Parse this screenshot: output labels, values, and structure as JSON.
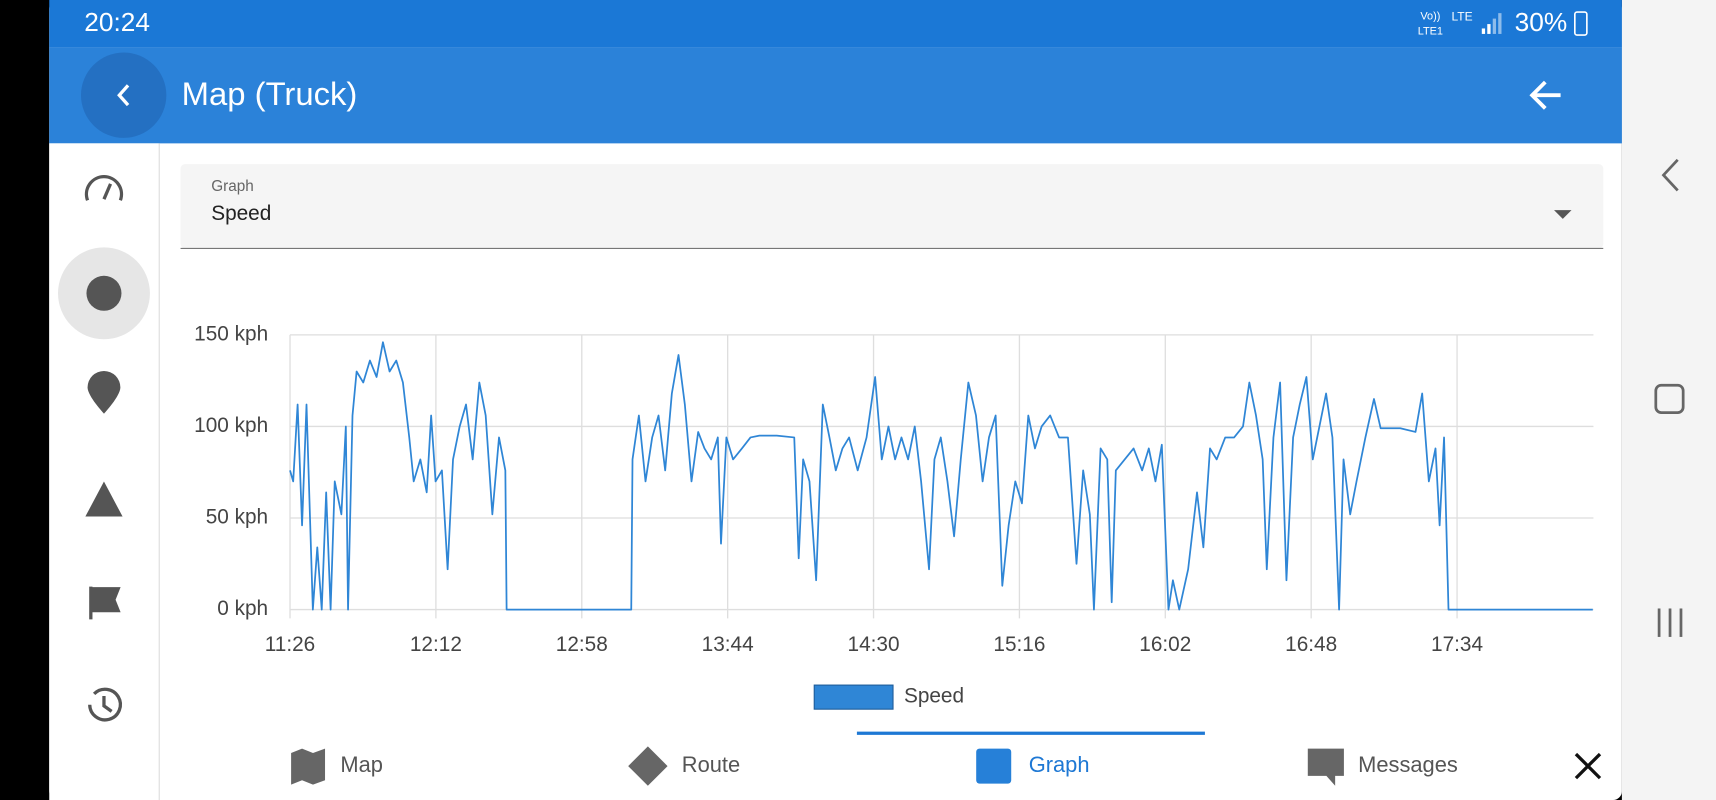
{
  "status_bar": {
    "time": "20:24",
    "net_top": "Vo))",
    "net_bottom": "LTE1",
    "net2": "LTE",
    "battery": "30%"
  },
  "header": {
    "title": "Map (Truck)"
  },
  "dropdown": {
    "label": "Graph",
    "value": "Speed"
  },
  "chart_data": {
    "type": "line",
    "x": [
      686,
      687,
      688.4,
      689.8,
      691.2,
      693.2,
      694.6,
      696,
      697.4,
      698.8,
      700.1,
      702.2,
      703.6,
      704.3,
      705.7,
      707,
      709.1,
      711.2,
      713.3,
      715.3,
      717.4,
      719.5,
      721.6,
      723.6,
      725,
      727.1,
      729.1,
      730.5,
      731.9,
      733.9,
      735.7,
      737.4,
      739.5,
      741.5,
      743.6,
      745.7,
      747.7,
      749.8,
      751.9,
      753.9,
      754.3,
      793.6,
      794,
      796,
      798.1,
      800.2,
      802.2,
      804.3,
      806.4,
      808.5,
      810.5,
      812.6,
      814.7,
      816.7,
      818.8,
      820.9,
      821.9,
      823.6,
      825.7,
      828.5,
      831.2,
      834,
      839.5,
      845,
      846.4,
      847.8,
      849.8,
      851.9,
      854,
      856.1,
      858.1,
      860.2,
      862.3,
      865,
      867.8,
      870.5,
      872.6,
      874.7,
      876.8,
      878.8,
      880.9,
      883,
      885,
      887.5,
      889.2,
      891.2,
      893.3,
      895.4,
      897.5,
      899.9,
      902.3,
      904.4,
      906.4,
      908.5,
      910.6,
      912.6,
      914.7,
      916.8,
      918.8,
      920.9,
      923,
      925.7,
      928.5,
      931.3,
      934,
      936.1,
      938.2,
      939.5,
      941.6,
      943.7,
      945.1,
      946.4,
      949.2,
      952,
      954.7,
      956.8,
      958.9,
      960.9,
      963,
      964.4,
      966.4,
      969.2,
      972,
      974,
      976.1,
      978.2,
      980.9,
      983.7,
      986.5,
      988.5,
      990.6,
      992.7,
      994,
      996.1,
      998.2,
      1000.2,
      1002.3,
      1004.4,
      1006.5,
      1008.5,
      1010.6,
      1012.7,
      1014.7,
      1016.8,
      1018.2,
      1020.3,
      1022.3,
      1025.1,
      1027.8,
      1029.9,
      1036.1,
      1040.9,
      1043,
      1045.1,
      1047.2,
      1048.5,
      1049.9,
      1051.3,
      1096.8
    ],
    "series": [
      {
        "name": "Speed",
        "color": "#2f86d6",
        "values": [
          76,
          70,
          112,
          46,
          112,
          0,
          34,
          0,
          64,
          0,
          70,
          52,
          100,
          0,
          106,
          130,
          124,
          136,
          127,
          146,
          130,
          136,
          124,
          94,
          70,
          82,
          64,
          106,
          70,
          76,
          22,
          82,
          100,
          112,
          82,
          124,
          106,
          52,
          94,
          76,
          0,
          0,
          82,
          106,
          70,
          94,
          106,
          76,
          118,
          139,
          112,
          70,
          97,
          88,
          82,
          94,
          36,
          94,
          82,
          88,
          94,
          95,
          95,
          94,
          28,
          82,
          70,
          16,
          112,
          94,
          76,
          88,
          94,
          76,
          94,
          127,
          82,
          100,
          82,
          94,
          82,
          100,
          70,
          22,
          82,
          94,
          70,
          40,
          82,
          124,
          106,
          70,
          94,
          106,
          13,
          46,
          70,
          58,
          106,
          88,
          100,
          106,
          94,
          94,
          25,
          76,
          52,
          0,
          88,
          82,
          4,
          76,
          82,
          88,
          76,
          88,
          70,
          90,
          0,
          16,
          0,
          22,
          64,
          34,
          88,
          82,
          94,
          94,
          100,
          124,
          106,
          82,
          22,
          94,
          124,
          16,
          94,
          112,
          127,
          82,
          100,
          118,
          94,
          0,
          82,
          52,
          70,
          94,
          115,
          99,
          99,
          97,
          118,
          70,
          88,
          46,
          94,
          0,
          0
        ]
      }
    ],
    "xlim": [
      686,
      1097
    ],
    "xticks": [
      {
        "value": 686,
        "label": "11:26"
      },
      {
        "value": 732,
        "label": "12:12"
      },
      {
        "value": 778,
        "label": "12:58"
      },
      {
        "value": 824,
        "label": "13:44"
      },
      {
        "value": 870,
        "label": "14:30"
      },
      {
        "value": 916,
        "label": "15:16"
      },
      {
        "value": 962,
        "label": "16:02"
      },
      {
        "value": 1008,
        "label": "16:48"
      },
      {
        "value": 1054,
        "label": "17:34"
      }
    ],
    "ylim": [
      0,
      150
    ],
    "yticks": [
      {
        "value": 0,
        "label": "0 kph"
      },
      {
        "value": 50,
        "label": "50 kph"
      },
      {
        "value": 100,
        "label": "100 kph"
      },
      {
        "value": 150,
        "label": "150 kph"
      }
    ],
    "grid": true
  },
  "tabs": [
    "Map",
    "Route",
    "Graph",
    "Messages"
  ],
  "active_tab": 2
}
